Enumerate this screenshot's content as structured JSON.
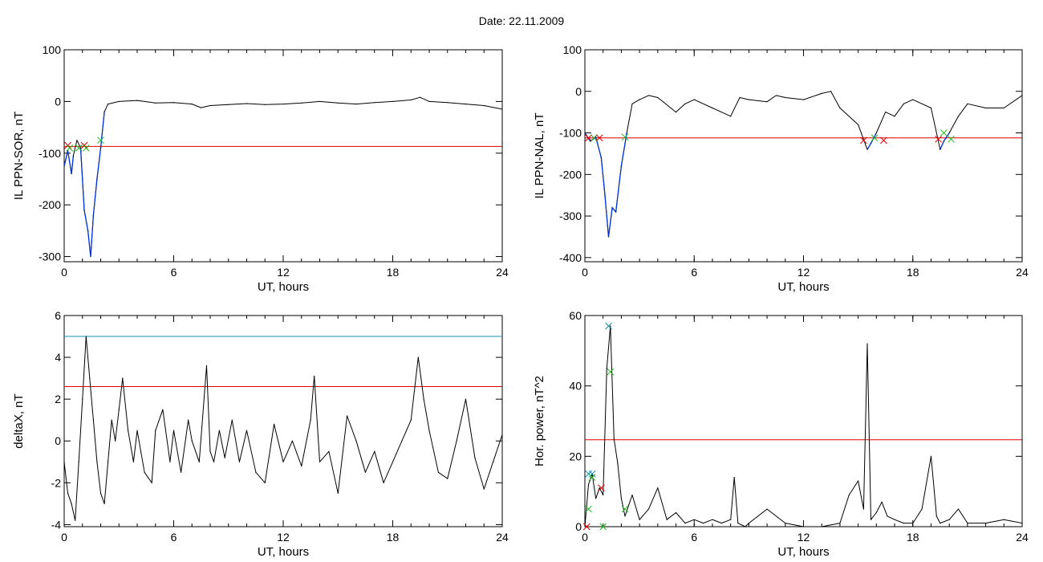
{
  "title": "Date:  22.11.2009",
  "colors": {
    "trace": "#000000",
    "threshold": "#e00000",
    "upper": "#1a8fb0",
    "event": "#0033dd",
    "marker_red": "#e00000",
    "marker_green": "#22bb22",
    "marker_blue": "#1a8fb0"
  },
  "chart_data": [
    {
      "type": "line",
      "xlabel": "UT, hours",
      "ylabel": "IL PPN-SOR, nT",
      "xlim": [
        0,
        24
      ],
      "ylim": [
        -310,
        100
      ],
      "xticks": [
        "0",
        "6",
        "12",
        "18",
        "24"
      ],
      "yticks": [
        "100",
        "0",
        "-100",
        "-200",
        "-300"
      ],
      "threshold": -87,
      "series": [
        {
          "x": [
            0,
            0.2,
            0.4,
            0.5,
            0.7,
            0.9,
            1.1,
            1.3,
            1.45,
            1.6,
            1.8,
            2.0,
            2.2,
            2.4,
            3,
            4,
            5,
            6,
            7,
            7.5,
            8,
            9,
            10,
            11,
            12,
            13,
            14,
            15,
            16,
            17,
            18,
            19,
            19.5,
            20,
            21,
            22,
            23,
            24
          ],
          "values": [
            -125,
            -95,
            -140,
            -105,
            -75,
            -90,
            -210,
            -250,
            -300,
            -220,
            -150,
            -90,
            -20,
            -5,
            0,
            2,
            -3,
            -2,
            -5,
            -12,
            -8,
            -6,
            -4,
            -6,
            -5,
            -3,
            0,
            -3,
            -5,
            -2,
            0,
            3,
            8,
            0,
            -2,
            -5,
            -8,
            -15
          ]
        }
      ],
      "event_segments": [
        [
          0,
          0.6
        ],
        [
          0.9,
          2.2
        ]
      ],
      "markers": [
        {
          "x": 0.2,
          "y": -85,
          "color": "red"
        },
        {
          "x": 0.3,
          "y": -90,
          "color": "green"
        },
        {
          "x": 0.8,
          "y": -90,
          "color": "green"
        },
        {
          "x": 1.1,
          "y": -85,
          "color": "red"
        },
        {
          "x": 1.2,
          "y": -90,
          "color": "green"
        },
        {
          "x": 2.0,
          "y": -75,
          "color": "green"
        }
      ]
    },
    {
      "type": "line",
      "xlabel": "UT, hours",
      "ylabel": "IL PPN-NAL, nT",
      "xlim": [
        0,
        24
      ],
      "ylim": [
        -410,
        100
      ],
      "xticks": [
        "0",
        "6",
        "12",
        "18",
        "24"
      ],
      "yticks": [
        "100",
        "0",
        "-100",
        "-200",
        "-300",
        "-400"
      ],
      "threshold": -112,
      "series": [
        {
          "x": [
            0,
            0.3,
            0.6,
            0.9,
            1.1,
            1.3,
            1.5,
            1.7,
            2.0,
            2.3,
            2.6,
            3,
            3.5,
            4,
            5,
            5.5,
            6,
            7,
            8,
            8.5,
            9,
            10,
            10.5,
            11,
            12,
            13,
            13.5,
            14,
            15,
            15.5,
            15.7,
            16,
            16.5,
            17,
            17.5,
            18,
            19,
            19.5,
            19.7,
            20,
            20.5,
            21,
            22,
            23,
            24
          ],
          "values": [
            -100,
            -120,
            -110,
            -160,
            -250,
            -350,
            -280,
            -290,
            -180,
            -100,
            -30,
            -20,
            -10,
            -15,
            -50,
            -30,
            -20,
            -40,
            -60,
            -15,
            -20,
            -25,
            -10,
            -15,
            -20,
            -5,
            0,
            -40,
            -80,
            -140,
            -125,
            -100,
            -50,
            -60,
            -30,
            -20,
            -40,
            -140,
            -120,
            -100,
            -60,
            -30,
            -40,
            -40,
            -10
          ]
        }
      ],
      "event_segments": [
        [
          0,
          2.3
        ],
        [
          15.2,
          16.3
        ],
        [
          19.3,
          20.3
        ]
      ],
      "markers": [
        {
          "x": 0.2,
          "y": -112,
          "color": "red"
        },
        {
          "x": 0.5,
          "y": -112,
          "color": "green"
        },
        {
          "x": 0.8,
          "y": -112,
          "color": "red"
        },
        {
          "x": 2.2,
          "y": -110,
          "color": "green"
        },
        {
          "x": 15.3,
          "y": -118,
          "color": "red"
        },
        {
          "x": 15.9,
          "y": -112,
          "color": "green"
        },
        {
          "x": 16.4,
          "y": -118,
          "color": "red"
        },
        {
          "x": 19.4,
          "y": -115,
          "color": "red"
        },
        {
          "x": 19.7,
          "y": -100,
          "color": "green"
        },
        {
          "x": 20.1,
          "y": -115,
          "color": "green"
        }
      ]
    },
    {
      "type": "line",
      "xlabel": "UT, hours",
      "ylabel": "deltaX, nT",
      "xlim": [
        0,
        24
      ],
      "ylim": [
        -4.1,
        6
      ],
      "xticks": [
        "0",
        "6",
        "12",
        "18",
        "24"
      ],
      "yticks": [
        "6",
        "4",
        "2",
        "0",
        "-2",
        "-4"
      ],
      "threshold": 2.6,
      "upper_line": 5.0,
      "series": [
        {
          "x": [
            0,
            0.2,
            0.4,
            0.6,
            0.8,
            1.0,
            1.2,
            1.4,
            1.6,
            1.8,
            2.0,
            2.2,
            2.4,
            2.6,
            2.8,
            3.0,
            3.2,
            3.5,
            3.8,
            4.0,
            4.4,
            4.8,
            5.0,
            5.4,
            5.8,
            6.0,
            6.4,
            6.8,
            7.0,
            7.4,
            7.8,
            8.0,
            8.2,
            8.5,
            8.8,
            9.2,
            9.6,
            10,
            10.5,
            11,
            11.5,
            12,
            12.5,
            13,
            13.5,
            13.7,
            14,
            14.5,
            15,
            15.5,
            16,
            16.5,
            17,
            17.5,
            18,
            18.5,
            19,
            19.4,
            19.7,
            20,
            20.5,
            21,
            21.5,
            22,
            22.5,
            23,
            23.5,
            24
          ],
          "values": [
            -1,
            -2.5,
            -3,
            -3.8,
            -1,
            2,
            5,
            3,
            1,
            -1,
            -2.5,
            -3,
            -1,
            1,
            0,
            1.5,
            3,
            0.5,
            -1,
            0.5,
            -1.5,
            -2,
            0.5,
            1.5,
            -1,
            0.5,
            -1.5,
            1,
            0,
            -1,
            3.6,
            -0.5,
            -1,
            0.5,
            -0.8,
            1,
            -1,
            0.5,
            -1.5,
            -2,
            0.8,
            -1,
            0,
            -1.2,
            1,
            3.1,
            -1,
            -0.5,
            -2.5,
            1.2,
            0,
            -1.5,
            -0.5,
            -2,
            -1,
            0,
            1,
            4,
            2,
            0.5,
            -1.5,
            -1.8,
            0,
            2,
            -0.8,
            -2.3,
            -1,
            0.3
          ]
        }
      ],
      "event_segments": [],
      "markers": []
    },
    {
      "type": "line",
      "xlabel": "UT, hours",
      "ylabel": "Hor. power, nT^2",
      "xlim": [
        0,
        24
      ],
      "ylim": [
        0,
        60
      ],
      "xticks": [
        "0",
        "6",
        "12",
        "18",
        "24"
      ],
      "yticks": [
        "60",
        "40",
        "20",
        "0"
      ],
      "threshold": 24.7,
      "series": [
        {
          "x": [
            0,
            0.2,
            0.4,
            0.6,
            0.8,
            1.0,
            1.2,
            1.4,
            1.6,
            1.8,
            2.0,
            2.2,
            2.4,
            2.6,
            3.0,
            3.5,
            4.0,
            4.5,
            5.0,
            5.5,
            6.0,
            6.5,
            7.0,
            7.5,
            8.0,
            8.2,
            8.4,
            8.8,
            9.0,
            10,
            11,
            12,
            13,
            14,
            14.5,
            15.0,
            15.3,
            15.5,
            15.7,
            16.0,
            16.3,
            16.6,
            17,
            17.5,
            18,
            18.5,
            19.0,
            19.3,
            19.5,
            20.0,
            20.5,
            21,
            22,
            23,
            24
          ],
          "values": [
            0,
            12,
            15,
            8,
            11,
            9,
            45,
            57,
            25,
            18,
            8,
            3,
            6,
            9,
            2,
            5,
            11,
            2,
            4,
            1,
            2,
            1,
            2,
            1,
            2,
            14,
            1,
            0,
            1,
            5,
            1,
            0,
            0,
            1,
            9,
            13,
            5,
            52,
            2,
            4,
            7,
            3,
            2,
            1,
            1,
            5,
            20,
            3,
            1,
            2,
            5,
            1,
            1,
            2,
            1
          ]
        }
      ],
      "event_segments": [],
      "markers": [
        {
          "x": 0.1,
          "y": 0,
          "color": "red"
        },
        {
          "x": 0.2,
          "y": 5,
          "color": "green"
        },
        {
          "x": 0.2,
          "y": 15,
          "color": "blue"
        },
        {
          "x": 0.4,
          "y": 15,
          "color": "blue"
        },
        {
          "x": 0.4,
          "y": 14,
          "color": "green"
        },
        {
          "x": 0.9,
          "y": 11,
          "color": "red"
        },
        {
          "x": 1.0,
          "y": 0,
          "color": "green"
        },
        {
          "x": 1.3,
          "y": 57,
          "color": "blue"
        },
        {
          "x": 1.4,
          "y": 44,
          "color": "green"
        },
        {
          "x": 2.2,
          "y": 5,
          "color": "green"
        }
      ]
    }
  ]
}
